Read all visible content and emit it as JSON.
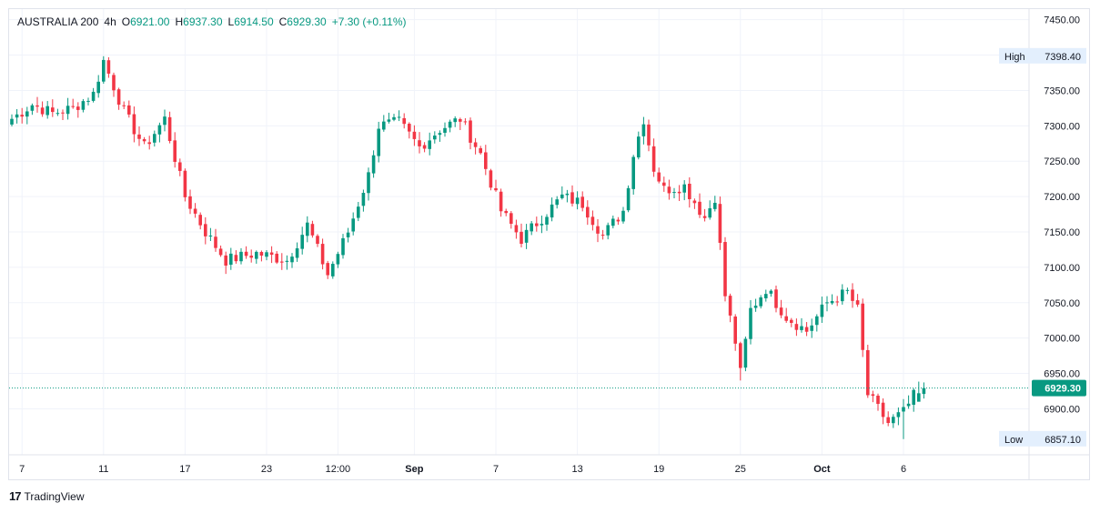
{
  "header": {
    "symbol": "AUSTRALIA 200",
    "interval": "4h",
    "open_label": "O",
    "open": "6921.00",
    "high_label": "H",
    "high": "6937.30",
    "low_label": "L",
    "low": "6914.50",
    "close_label": "C",
    "close": "6929.30",
    "change": "+7.30 (+0.11%)"
  },
  "footer": {
    "logo_mark": "17",
    "brand": "TradingView"
  },
  "colors": {
    "up": "#089981",
    "down": "#f23645",
    "grid": "#f0f3fa",
    "last_price": "#089981",
    "badge_bg": "#e3effd"
  },
  "chart_data": {
    "type": "candlestick",
    "y_axis": {
      "min": 6835,
      "max": 7465,
      "ticks": [
        "7450.00",
        "7400.00",
        "7350.00",
        "7300.00",
        "7250.00",
        "7200.00",
        "7150.00",
        "7100.00",
        "7050.00",
        "7000.00",
        "6950.00",
        "6900.00"
      ],
      "tick_values": [
        7450,
        7400,
        7350,
        7300,
        7250,
        7200,
        7150,
        7100,
        7050,
        7000,
        6950,
        6900
      ]
    },
    "x_axis": {
      "labels": [
        "7",
        "11",
        "17",
        "23",
        "12:00",
        "Sep",
        "7",
        "13",
        "19",
        "25",
        "Oct",
        "6"
      ],
      "label_index": [
        2,
        18,
        34,
        50,
        64,
        79,
        95,
        111,
        127,
        143,
        159,
        175
      ],
      "bold": [
        false,
        false,
        false,
        false,
        false,
        true,
        false,
        false,
        false,
        false,
        true,
        false
      ],
      "bars_visible": 180
    },
    "high_marker": {
      "label": "High",
      "value": "7398.40",
      "level": 7398.4
    },
    "low_marker": {
      "label": "Low",
      "value": "6857.10",
      "level": 6857.1
    },
    "last_price": {
      "value": "6929.30",
      "level": 6929.3
    },
    "anchors": [
      [
        0,
        7310
      ],
      [
        4,
        7330
      ],
      [
        8,
        7318
      ],
      [
        12,
        7325
      ],
      [
        16,
        7345
      ],
      [
        18,
        7392
      ],
      [
        22,
        7320
      ],
      [
        26,
        7270
      ],
      [
        30,
        7310
      ],
      [
        34,
        7200
      ],
      [
        38,
        7150
      ],
      [
        42,
        7110
      ],
      [
        48,
        7120
      ],
      [
        54,
        7110
      ],
      [
        58,
        7160
      ],
      [
        62,
        7090
      ],
      [
        66,
        7150
      ],
      [
        70,
        7230
      ],
      [
        72,
        7300
      ],
      [
        76,
        7305
      ],
      [
        80,
        7270
      ],
      [
        84,
        7295
      ],
      [
        88,
        7310
      ],
      [
        92,
        7260
      ],
      [
        96,
        7180
      ],
      [
        100,
        7140
      ],
      [
        104,
        7170
      ],
      [
        108,
        7200
      ],
      [
        112,
        7190
      ],
      [
        116,
        7145
      ],
      [
        120,
        7180
      ],
      [
        122,
        7260
      ],
      [
        124,
        7310
      ],
      [
        126,
        7240
      ],
      [
        128,
        7210
      ],
      [
        132,
        7215
      ],
      [
        136,
        7170
      ],
      [
        138,
        7200
      ],
      [
        140,
        7060
      ],
      [
        142,
        6995
      ],
      [
        143,
        6950
      ],
      [
        145,
        7040
      ],
      [
        148,
        7070
      ],
      [
        152,
        7030
      ],
      [
        156,
        7010
      ],
      [
        160,
        7050
      ],
      [
        164,
        7065
      ],
      [
        166,
        7040
      ],
      [
        168,
        6920
      ],
      [
        172,
        6880
      ],
      [
        175,
        6895
      ],
      [
        178,
        6929.3
      ]
    ],
    "last": {
      "open": 6921.0,
      "high": 6937.3,
      "low": 6914.5,
      "close": 6929.3
    }
  }
}
